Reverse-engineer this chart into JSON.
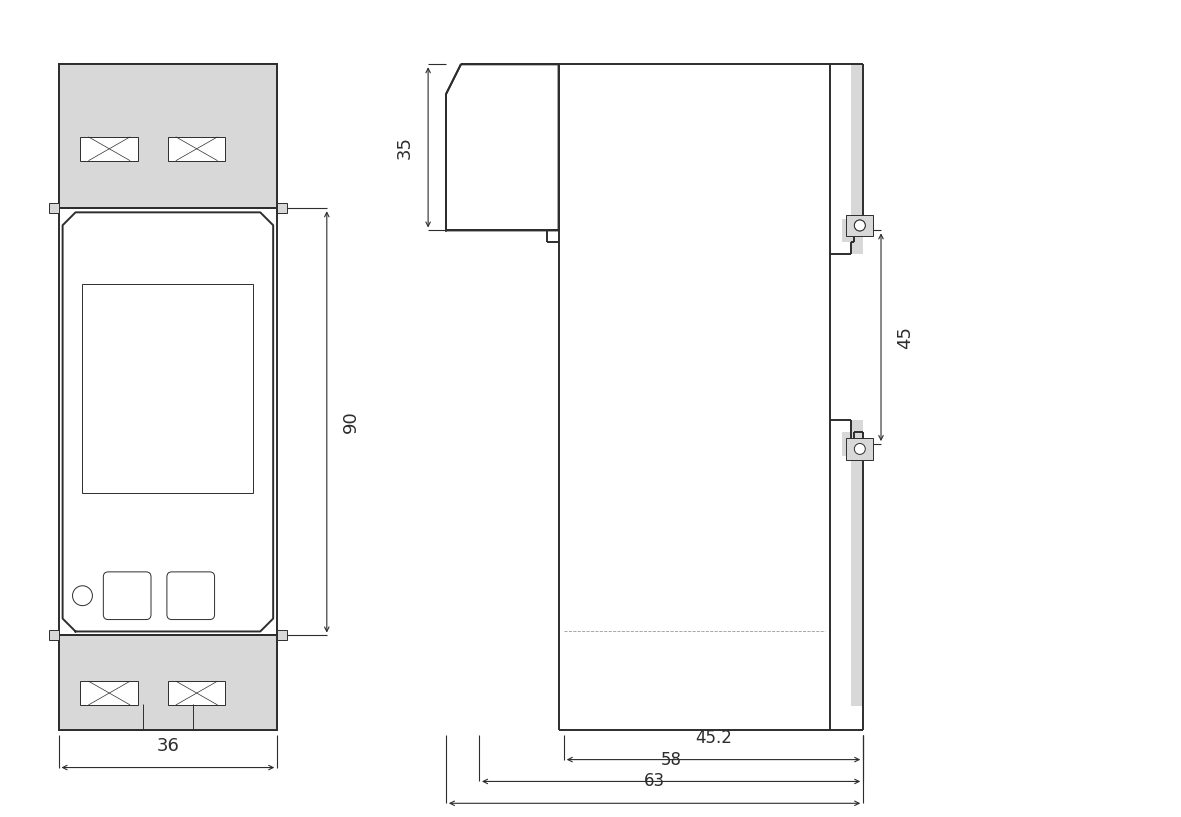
{
  "bg_color": "#ffffff",
  "line_color": "#2d2d2d",
  "dim_color": "#2d2d2d",
  "gray_fill": "#d8d8d8",
  "fig_width": 11.81,
  "fig_height": 8.17,
  "dim_36_text": "36",
  "dim_90_text": "90",
  "dim_35_text": "35",
  "dim_45_text": "45",
  "dim_452_text": "45.2",
  "dim_58_text": "58",
  "dim_63_text": "63",
  "lw_main": 1.4,
  "lw_thin": 0.7,
  "lw_dim": 0.8,
  "font_dim": 13
}
